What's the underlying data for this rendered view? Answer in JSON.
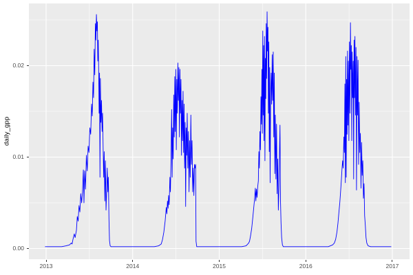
{
  "chart_data": {
    "type": "line",
    "title": "",
    "xlabel": "",
    "ylabel": "daily_gpp",
    "legend": "none",
    "grid": "major-and-minor-white-on-grey-panel",
    "xlim": [
      2012.801,
      2017.199
    ],
    "ylim": [
      -0.001165,
      0.026805
    ],
    "x_ticks": [
      {
        "v": 2013,
        "label": "2013"
      },
      {
        "v": 2014,
        "label": "2014"
      },
      {
        "v": 2015,
        "label": "2015"
      },
      {
        "v": 2016,
        "label": "2016"
      },
      {
        "v": 2017,
        "label": "2017"
      }
    ],
    "y_ticks": [
      {
        "v": 0.0,
        "label": "0.00"
      },
      {
        "v": 0.01,
        "label": "0.01"
      },
      {
        "v": 0.02,
        "label": "0.02"
      }
    ],
    "x_minor": [
      2013.5,
      2014.5,
      2015.5,
      2016.5
    ],
    "y_minor": [
      0.005,
      0.015,
      0.025
    ],
    "colors": {
      "line": "#0000FF",
      "panel_bg": "#EBEBEB",
      "grid": "#FFFFFF",
      "axis_text": "#4D4D4D",
      "axis_title": "#000000",
      "tick_mark": "#333333",
      "page_bg": "#FFFFFF"
    },
    "series": [
      {
        "name": "daily_gpp",
        "points": [
          [
            2012.99,
            0.0002
          ],
          [
            2013.05,
            0.0002
          ],
          [
            2013.12,
            0.0002
          ],
          [
            2013.18,
            0.0002
          ],
          [
            2013.23,
            0.0003
          ],
          [
            2013.27,
            0.0004
          ],
          [
            2013.29,
            0.0006
          ],
          [
            2013.3,
            0.0005
          ],
          [
            2013.31,
            0.001
          ],
          [
            2013.325,
            0.0016
          ],
          [
            2013.335,
            0.0012
          ],
          [
            2013.35,
            0.002
          ],
          [
            2013.36,
            0.0035
          ],
          [
            2013.37,
            0.003
          ],
          [
            2013.38,
            0.0047
          ],
          [
            2013.39,
            0.004
          ],
          [
            2013.4,
            0.006
          ],
          [
            2013.41,
            0.005
          ],
          [
            2013.42,
            0.0062
          ],
          [
            2013.43,
            0.0086
          ],
          [
            2013.437,
            0.005
          ],
          [
            2013.445,
            0.0085
          ],
          [
            2013.455,
            0.0065
          ],
          [
            2013.465,
            0.0102
          ],
          [
            2013.475,
            0.0085
          ],
          [
            2013.485,
            0.0112
          ],
          [
            2013.495,
            0.0105
          ],
          [
            2013.505,
            0.0132
          ],
          [
            2013.515,
            0.0125
          ],
          [
            2013.525,
            0.0158
          ],
          [
            2013.533,
            0.0145
          ],
          [
            2013.541,
            0.0182
          ],
          [
            2013.548,
            0.0165
          ],
          [
            2013.555,
            0.0218
          ],
          [
            2013.562,
            0.019
          ],
          [
            2013.569,
            0.0246
          ],
          [
            2013.575,
            0.0228
          ],
          [
            2013.581,
            0.0256
          ],
          [
            2013.587,
            0.0238
          ],
          [
            2013.592,
            0.0248
          ],
          [
            2013.597,
            0.0205
          ],
          [
            2013.602,
            0.0228
          ],
          [
            2013.607,
            0.0196
          ],
          [
            2013.612,
            0.0148
          ],
          [
            2013.617,
            0.0192
          ],
          [
            2013.622,
            0.0078
          ],
          [
            2013.627,
            0.0186
          ],
          [
            2013.633,
            0.0138
          ],
          [
            2013.64,
            0.0162
          ],
          [
            2013.646,
            0.0128
          ],
          [
            2013.652,
            0.0148
          ],
          [
            2013.659,
            0.0108
          ],
          [
            2013.665,
            0.0078
          ],
          [
            2013.671,
            0.0106
          ],
          [
            2013.678,
            0.0052
          ],
          [
            2013.685,
            0.0096
          ],
          [
            2013.692,
            0.0042
          ],
          [
            2013.699,
            0.0062
          ],
          [
            2013.706,
            0.0088
          ],
          [
            2013.713,
            0.0062
          ],
          [
            2013.719,
            0.0078
          ],
          [
            2013.726,
            0.0032
          ],
          [
            2013.732,
            0.0009
          ],
          [
            2013.74,
            0.0003
          ],
          [
            2013.75,
            0.0002
          ],
          [
            2013.83,
            0.0002
          ],
          [
            2013.92,
            0.0002
          ],
          [
            2014.0,
            0.0002
          ],
          [
            2014.08,
            0.0002
          ],
          [
            2014.17,
            0.0002
          ],
          [
            2014.25,
            0.0002
          ],
          [
            2014.3,
            0.0003
          ],
          [
            2014.33,
            0.0005
          ],
          [
            2014.345,
            0.001
          ],
          [
            2014.36,
            0.0018
          ],
          [
            2014.375,
            0.003
          ],
          [
            2014.388,
            0.0045
          ],
          [
            2014.395,
            0.0038
          ],
          [
            2014.402,
            0.0052
          ],
          [
            2014.409,
            0.0044
          ],
          [
            2014.415,
            0.0058
          ],
          [
            2014.422,
            0.0048
          ],
          [
            2014.43,
            0.0078
          ],
          [
            2014.436,
            0.0062
          ],
          [
            2014.443,
            0.0098
          ],
          [
            2014.45,
            0.0152
          ],
          [
            2014.456,
            0.0078
          ],
          [
            2014.462,
            0.0132
          ],
          [
            2014.468,
            0.0098
          ],
          [
            2014.474,
            0.0168
          ],
          [
            2014.48,
            0.0122
          ],
          [
            2014.486,
            0.0188
          ],
          [
            2014.492,
            0.0128
          ],
          [
            2014.498,
            0.0196
          ],
          [
            2014.504,
            0.0108
          ],
          [
            2014.51,
            0.0185
          ],
          [
            2014.516,
            0.0148
          ],
          [
            2014.522,
            0.0203
          ],
          [
            2014.528,
            0.0162
          ],
          [
            2014.534,
            0.0198
          ],
          [
            2014.54,
            0.0122
          ],
          [
            2014.546,
            0.0196
          ],
          [
            2014.552,
            0.0148
          ],
          [
            2014.558,
            0.0185
          ],
          [
            2014.564,
            0.0102
          ],
          [
            2014.57,
            0.0162
          ],
          [
            2014.576,
            0.0118
          ],
          [
            2014.582,
            0.0172
          ],
          [
            2014.588,
            0.0105
          ],
          [
            2014.594,
            0.0158
          ],
          [
            2014.6,
            0.0088
          ],
          [
            2014.606,
            0.0138
          ],
          [
            2014.612,
            0.0046
          ],
          [
            2014.618,
            0.0132
          ],
          [
            2014.624,
            0.0102
          ],
          [
            2014.63,
            0.0148
          ],
          [
            2014.637,
            0.0088
          ],
          [
            2014.644,
            0.0128
          ],
          [
            2014.651,
            0.0062
          ],
          [
            2014.658,
            0.0118
          ],
          [
            2014.665,
            0.0078
          ],
          [
            2014.672,
            0.0146
          ],
          [
            2014.679,
            0.0092
          ],
          [
            2014.686,
            0.0118
          ],
          [
            2014.693,
            0.0062
          ],
          [
            2014.7,
            0.0088
          ],
          [
            2014.707,
            0.0058
          ],
          [
            2014.714,
            0.0092
          ],
          [
            2014.721,
            0.0088
          ],
          [
            2014.727,
            0.0092
          ],
          [
            2014.732,
            0.0008
          ],
          [
            2014.74,
            0.0002
          ],
          [
            2014.82,
            0.0002
          ],
          [
            2014.91,
            0.0002
          ],
          [
            2015.0,
            0.0002
          ],
          [
            2015.09,
            0.0002
          ],
          [
            2015.18,
            0.0002
          ],
          [
            2015.26,
            0.0002
          ],
          [
            2015.31,
            0.0003
          ],
          [
            2015.34,
            0.0006
          ],
          [
            2015.35,
            0.0008
          ],
          [
            2015.362,
            0.0014
          ],
          [
            2015.375,
            0.0022
          ],
          [
            2015.388,
            0.0034
          ],
          [
            2015.4,
            0.0046
          ],
          [
            2015.41,
            0.0056
          ],
          [
            2015.417,
            0.0066
          ],
          [
            2015.423,
            0.0052
          ],
          [
            2015.43,
            0.0065
          ],
          [
            2015.437,
            0.0056
          ],
          [
            2015.445,
            0.0068
          ],
          [
            2015.452,
            0.0074
          ],
          [
            2015.458,
            0.0106
          ],
          [
            2015.464,
            0.0088
          ],
          [
            2015.47,
            0.0128
          ],
          [
            2015.476,
            0.0108
          ],
          [
            2015.482,
            0.0166
          ],
          [
            2015.488,
            0.0136
          ],
          [
            2015.493,
            0.0196
          ],
          [
            2015.498,
            0.0126
          ],
          [
            2015.503,
            0.0238
          ],
          [
            2015.508,
            0.0146
          ],
          [
            2015.513,
            0.0222
          ],
          [
            2015.518,
            0.0118
          ],
          [
            2015.523,
            0.0232
          ],
          [
            2015.528,
            0.0096
          ],
          [
            2015.533,
            0.0208
          ],
          [
            2015.538,
            0.0164
          ],
          [
            2015.543,
            0.0246
          ],
          [
            2015.548,
            0.0186
          ],
          [
            2015.553,
            0.0259
          ],
          [
            2015.558,
            0.0216
          ],
          [
            2015.563,
            0.0242
          ],
          [
            2015.568,
            0.0148
          ],
          [
            2015.573,
            0.0226
          ],
          [
            2015.578,
            0.0106
          ],
          [
            2015.583,
            0.0198
          ],
          [
            2015.588,
            0.0072
          ],
          [
            2015.594,
            0.0168
          ],
          [
            2015.6,
            0.0192
          ],
          [
            2015.606,
            0.0158
          ],
          [
            2015.612,
            0.0212
          ],
          [
            2015.618,
            0.0162
          ],
          [
            2015.624,
            0.0215
          ],
          [
            2015.63,
            0.0122
          ],
          [
            2015.636,
            0.0192
          ],
          [
            2015.642,
            0.0082
          ],
          [
            2015.648,
            0.0146
          ],
          [
            2015.655,
            0.0076
          ],
          [
            2015.662,
            0.0136
          ],
          [
            2015.669,
            0.006
          ],
          [
            2015.676,
            0.0098
          ],
          [
            2015.683,
            0.0042
          ],
          [
            2015.69,
            0.0066
          ],
          [
            2015.696,
            0.0102
          ],
          [
            2015.702,
            0.0135
          ],
          [
            2015.708,
            0.0052
          ],
          [
            2015.714,
            0.0028
          ],
          [
            2015.721,
            0.0012
          ],
          [
            2015.73,
            0.0004
          ],
          [
            2015.74,
            0.0002
          ],
          [
            2015.82,
            0.0002
          ],
          [
            2015.91,
            0.0002
          ],
          [
            2016.0,
            0.0002
          ],
          [
            2016.09,
            0.0002
          ],
          [
            2016.18,
            0.0002
          ],
          [
            2016.26,
            0.0002
          ],
          [
            2016.31,
            0.0004
          ],
          [
            2016.33,
            0.0006
          ],
          [
            2016.345,
            0.001
          ],
          [
            2016.36,
            0.0018
          ],
          [
            2016.372,
            0.0028
          ],
          [
            2016.383,
            0.004
          ],
          [
            2016.393,
            0.005
          ],
          [
            2016.402,
            0.0062
          ],
          [
            2016.411,
            0.0075
          ],
          [
            2016.419,
            0.0088
          ],
          [
            2016.426,
            0.0096
          ],
          [
            2016.432,
            0.0088
          ],
          [
            2016.44,
            0.0122
          ],
          [
            2016.446,
            0.0105
          ],
          [
            2016.452,
            0.018
          ],
          [
            2016.457,
            0.0072
          ],
          [
            2016.462,
            0.021
          ],
          [
            2016.467,
            0.0078
          ],
          [
            2016.472,
            0.0185
          ],
          [
            2016.477,
            0.0125
          ],
          [
            2016.482,
            0.0216
          ],
          [
            2016.487,
            0.0135
          ],
          [
            2016.492,
            0.0205
          ],
          [
            2016.498,
            0.0118
          ],
          [
            2016.504,
            0.0226
          ],
          [
            2016.51,
            0.0148
          ],
          [
            2016.516,
            0.0247
          ],
          [
            2016.521,
            0.0196
          ],
          [
            2016.526,
            0.0222
          ],
          [
            2016.531,
            0.0118
          ],
          [
            2016.536,
            0.0215
          ],
          [
            2016.542,
            0.0165
          ],
          [
            2016.548,
            0.0205
          ],
          [
            2016.553,
            0.0076
          ],
          [
            2016.558,
            0.0228
          ],
          [
            2016.563,
            0.0165
          ],
          [
            2016.568,
            0.0232
          ],
          [
            2016.574,
            0.0146
          ],
          [
            2016.58,
            0.022
          ],
          [
            2016.586,
            0.0064
          ],
          [
            2016.592,
            0.021
          ],
          [
            2016.598,
            0.0146
          ],
          [
            2016.604,
            0.0206
          ],
          [
            2016.61,
            0.0092
          ],
          [
            2016.617,
            0.016
          ],
          [
            2016.624,
            0.0105
          ],
          [
            2016.631,
            0.0126
          ],
          [
            2016.638,
            0.0066
          ],
          [
            2016.645,
            0.0116
          ],
          [
            2016.652,
            0.008
          ],
          [
            2016.659,
            0.0096
          ],
          [
            2016.666,
            0.0055
          ],
          [
            2016.673,
            0.0071
          ],
          [
            2016.68,
            0.0036
          ],
          [
            2016.688,
            0.0025
          ],
          [
            2016.696,
            0.0012
          ],
          [
            2016.705,
            0.0006
          ],
          [
            2016.72,
            0.0003
          ],
          [
            2016.75,
            0.0002
          ],
          [
            2016.82,
            0.0002
          ],
          [
            2016.9,
            0.0002
          ],
          [
            2016.97,
            0.0002
          ],
          [
            2016.985,
            0.0002
          ]
        ]
      }
    ]
  }
}
